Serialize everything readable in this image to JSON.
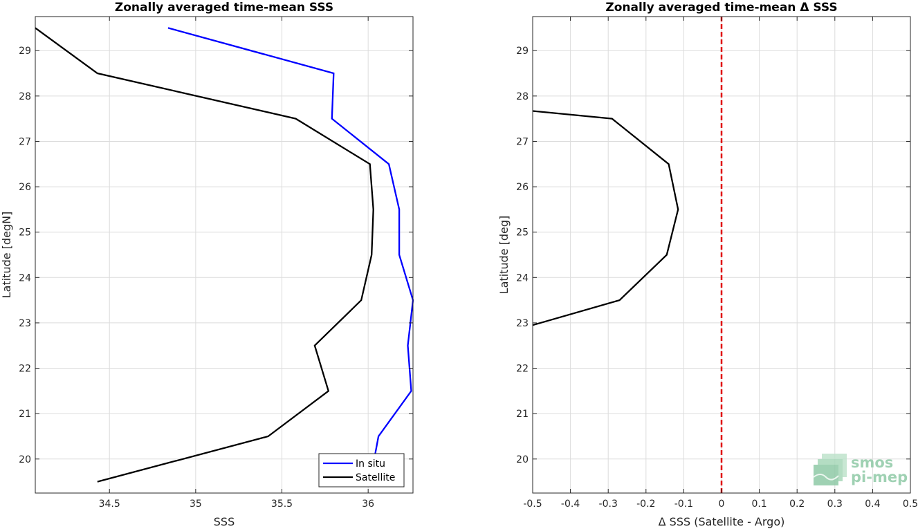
{
  "chart_data": [
    {
      "type": "line",
      "title": "Zonally averaged time-mean SSS",
      "xlabel": "SSS",
      "ylabel": "Latitude [degN]",
      "xlim": [
        34.07,
        36.26
      ],
      "ylim": [
        19.25,
        29.75
      ],
      "xticks": [
        34.5,
        35,
        35.5,
        36
      ],
      "xtick_labels": [
        "34.5",
        "35",
        "35.5",
        "36"
      ],
      "yticks": [
        20,
        21,
        22,
        23,
        24,
        25,
        26,
        27,
        28,
        29
      ],
      "ytick_labels": [
        "20",
        "21",
        "22",
        "23",
        "24",
        "25",
        "26",
        "27",
        "28",
        "29"
      ],
      "grid": true,
      "legend": {
        "placement": "bottom-right",
        "entries": [
          "In situ",
          "Satellite"
        ]
      },
      "series": [
        {
          "name": "In situ",
          "color": "#0000ff",
          "x": [
            34.84,
            35.8,
            35.79,
            36.12,
            36.18,
            36.18,
            36.26,
            36.23,
            36.25,
            36.06,
            36.04
          ],
          "y": [
            29.5,
            28.5,
            27.5,
            26.5,
            25.5,
            24.5,
            23.5,
            22.5,
            21.5,
            20.5,
            20.1
          ]
        },
        {
          "name": "Satellite",
          "color": "#000000",
          "x": [
            34.07,
            34.43,
            35.58,
            36.01,
            36.03,
            36.02,
            35.96,
            35.69,
            35.77,
            35.42,
            34.43
          ],
          "y": [
            29.5,
            28.5,
            27.5,
            26.5,
            25.5,
            24.5,
            23.5,
            22.5,
            21.5,
            20.5,
            19.5
          ]
        }
      ]
    },
    {
      "type": "line",
      "title": "Zonally averaged time-mean Δ SSS",
      "xlabel": "Δ SSS (Satellite - Argo)",
      "ylabel": "Latitude [deg]",
      "xlim": [
        -0.5,
        0.5
      ],
      "ylim": [
        19.25,
        29.75
      ],
      "xticks": [
        -0.5,
        -0.4,
        -0.3,
        -0.2,
        -0.1,
        0,
        0.1,
        0.2,
        0.3,
        0.4,
        0.5
      ],
      "xtick_labels": [
        "-0.5",
        "-0.4",
        "-0.3",
        "-0.2",
        "-0.1",
        "0",
        "0.1",
        "0.2",
        "0.3",
        "0.4",
        "0.5"
      ],
      "yticks": [
        20,
        21,
        22,
        23,
        24,
        25,
        26,
        27,
        28,
        29
      ],
      "ytick_labels": [
        "20",
        "21",
        "22",
        "23",
        "24",
        "25",
        "26",
        "27",
        "28",
        "29"
      ],
      "grid": true,
      "reference_line": {
        "x": 0,
        "color": "#e00000",
        "style": "dashed"
      },
      "series": [
        {
          "color": "#000000",
          "x": [
            -0.5,
            -0.29,
            -0.14,
            -0.115,
            -0.145,
            -0.27,
            -0.5
          ],
          "y": [
            27.67,
            27.5,
            26.5,
            25.5,
            24.5,
            23.5,
            22.95
          ]
        }
      ]
    }
  ],
  "logo": {
    "line1": "smos",
    "line2": "pi-mep",
    "color": "#8fc9a6"
  }
}
